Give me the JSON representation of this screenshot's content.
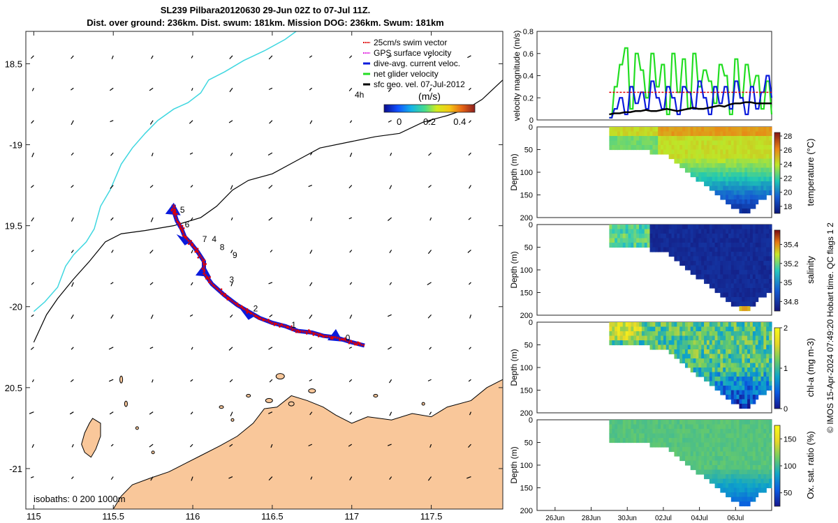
{
  "header": {
    "title_line1": "SL239 Pilbara20120630 29-Jun 02Z to 07-Jul 11Z.",
    "title_line2": "Dist. over ground: 236km. Dist. swum: 181km. Mission DOG: 236km. Swum: 181km"
  },
  "copyright": "© IMOS 15-Apr-2024 07:49:20 Hobart time. QC flags 1  2",
  "colors": {
    "land": "#f9c79a",
    "coast_line": "#000000",
    "isobath_0": "#000000",
    "isobath_200": "#3fd7e0",
    "swim_vector": "#e00000",
    "gps_velocity": "#e020e0",
    "current": "#0a1adc",
    "net_glider": "#22dd22",
    "geo_vel": "#000000"
  },
  "chart_data": [
    {
      "type": "map",
      "title": "SL239 Pilbara20120630 29-Jun 02Z to 07-Jul 11Z.",
      "xlim": [
        114.95,
        117.95
      ],
      "ylim": [
        -21.25,
        -18.3
      ],
      "x_ticks": [
        115,
        115.5,
        116,
        116.5,
        117,
        117.5
      ],
      "x_tick_labels": [
        "115",
        "115.5",
        "116",
        "116.5",
        "117",
        "117.5"
      ],
      "y_ticks": [
        -18.5,
        -19,
        -19.5,
        -20,
        -20.5,
        -21
      ],
      "y_tick_labels": [
        "18.5",
        "-19",
        "19.5",
        "-20",
        "20.5",
        "-21"
      ],
      "legend": {
        "placement": "top-right",
        "entries": [
          {
            "label": "25cm/s swim vector",
            "color": "#e00000",
            "style": "dotted"
          },
          {
            "label": "GPS surface velocity",
            "color": "#e020e0",
            "style": "dotted"
          },
          {
            "label": "dive-avg. current veloc.",
            "color": "#0a1adc",
            "style": "solid"
          },
          {
            "label": "net glider velocity",
            "color": "#22dd22",
            "style": "solid"
          },
          {
            "label": "sfc geo. vel. 07-Jul-2012",
            "color": "#000000",
            "style": "solid"
          }
        ],
        "note": "4h"
      },
      "colorbar": {
        "label": "(m/s)",
        "range": [
          -0.1,
          0.5
        ],
        "ticks": [
          0,
          0.2,
          0.4
        ],
        "tick_labels": [
          "0",
          "0.2",
          "0.4"
        ]
      },
      "isobath_label": "isobaths: 0   200  1000m",
      "track": [
        [
          117.08,
          -20.24
        ],
        [
          117.0,
          -20.22
        ],
        [
          116.9,
          -20.19
        ],
        [
          116.82,
          -20.18
        ],
        [
          116.75,
          -20.16
        ],
        [
          116.66,
          -20.15
        ],
        [
          116.58,
          -20.12
        ],
        [
          116.5,
          -20.1
        ],
        [
          116.42,
          -20.07
        ],
        [
          116.35,
          -20.03
        ],
        [
          116.28,
          -19.99
        ],
        [
          116.2,
          -19.93
        ],
        [
          116.12,
          -19.86
        ],
        [
          116.07,
          -19.79
        ],
        [
          116.07,
          -19.72
        ],
        [
          116.03,
          -19.66
        ],
        [
          115.99,
          -19.61
        ],
        [
          115.95,
          -19.57
        ],
        [
          115.93,
          -19.52
        ],
        [
          115.9,
          -19.47
        ],
        [
          115.88,
          -19.41
        ],
        [
          115.88,
          -19.37
        ]
      ],
      "track_labels": [
        {
          "text": "0",
          "lon": 116.96,
          "lat": -20.21
        },
        {
          "text": "1",
          "lon": 116.62,
          "lat": -20.13
        },
        {
          "text": "2",
          "lon": 116.38,
          "lat": -20.03
        },
        {
          "text": "3",
          "lon": 116.23,
          "lat": -19.85
        },
        {
          "text": "4",
          "lon": 116.12,
          "lat": -19.6
        },
        {
          "text": "5",
          "lon": 115.92,
          "lat": -19.42
        },
        {
          "text": "6",
          "lon": 115.95,
          "lat": -19.51
        },
        {
          "text": "7",
          "lon": 116.06,
          "lat": -19.6
        },
        {
          "text": "8",
          "lon": 116.17,
          "lat": -19.65
        },
        {
          "text": "9",
          "lon": 116.25,
          "lat": -19.7
        }
      ]
    },
    {
      "type": "line",
      "ylabel": "velocity magnitude (m/s)",
      "ylim": [
        0,
        0.8
      ],
      "y_ticks": [
        0,
        0.2,
        0.4,
        0.6,
        0.8
      ],
      "xlim": [
        "2012-06-25",
        "2012-07-08"
      ],
      "series": [
        {
          "color": "#22dd22",
          "values": [
            0.02,
            0.3,
            0.5,
            0.65,
            0.1,
            0.6,
            0.45,
            0.2,
            0.6,
            0.3,
            0.5,
            0.05,
            0.6,
            0.25,
            0.55,
            0.1,
            0.6,
            0.3,
            0.45,
            0.35,
            0.15,
            0.5,
            0.4,
            0.05,
            0.55,
            0.2,
            0.5,
            0.3,
            0.4,
            0.1,
            0.35,
            0.05
          ]
        },
        {
          "color": "#0a1adc",
          "values": [
            0.02,
            0.1,
            0.2,
            0.05,
            0.3,
            0.15,
            0.25,
            0.1,
            0.35,
            0.2,
            0.1,
            0.3,
            0.2,
            0.05,
            0.3,
            0.25,
            0.1,
            0.35,
            0.2,
            0.05,
            0.3,
            0.15,
            0.3,
            0.1,
            0.35,
            0.2,
            0.05,
            0.3,
            0.1,
            0.25,
            0.4,
            0.2
          ]
        },
        {
          "color": "#e00000",
          "values": [
            0.25,
            0.25,
            0.25,
            0.25,
            0.25,
            0.25,
            0.25,
            0.25,
            0.25,
            0.25,
            0.25,
            0.25,
            0.25,
            0.25,
            0.25,
            0.25,
            0.25,
            0.25,
            0.25,
            0.25,
            0.25,
            0.25,
            0.25,
            0.25,
            0.25,
            0.25,
            0.25,
            0.25,
            0.25,
            0.25,
            0.25,
            0.25
          ]
        },
        {
          "color": "#000000",
          "values": [
            0.05,
            0.06,
            0.06,
            0.07,
            0.07,
            0.08,
            0.08,
            0.09,
            0.08,
            0.08,
            0.09,
            0.1,
            0.09,
            0.08,
            0.09,
            0.1,
            0.11,
            0.1,
            0.1,
            0.11,
            0.12,
            0.13,
            0.12,
            0.14,
            0.15,
            0.15,
            0.16,
            0.16,
            0.15,
            0.15,
            0.15,
            0.15
          ]
        }
      ],
      "x_start": "2012-06-29",
      "x_end": "2012-07-08"
    },
    {
      "type": "heatmap",
      "ylabel": "Depth (m)",
      "clabel": "temperature (°C)",
      "clim": [
        17,
        28.5
      ],
      "cticks": [
        18,
        20,
        22,
        24,
        26,
        28
      ],
      "ylim": [
        0,
        200
      ],
      "y_ticks": [
        0,
        50,
        100,
        150,
        200
      ]
    },
    {
      "type": "heatmap",
      "ylabel": "Depth (m)",
      "clabel": "salinity",
      "clim": [
        34.7,
        35.55
      ],
      "cticks": [
        34.8,
        35,
        35.2,
        35.4
      ],
      "ylim": [
        0,
        200
      ],
      "y_ticks": [
        0,
        50,
        100,
        150,
        200
      ]
    },
    {
      "type": "heatmap",
      "ylabel": "Depth (m)",
      "clabel": "chl-a (mg m-3)",
      "clim": [
        0,
        2
      ],
      "cticks": [
        0,
        1,
        2
      ],
      "ylim": [
        0,
        200
      ],
      "y_ticks": [
        0,
        50,
        100,
        150,
        200
      ]
    },
    {
      "type": "heatmap",
      "ylabel": "Depth (m)",
      "clabel": "Ox. sat. ratio (%)",
      "clim": [
        25,
        175
      ],
      "cticks": [
        50,
        100,
        150
      ],
      "ylim": [
        0,
        200
      ],
      "y_ticks": [
        0,
        50,
        100,
        150,
        200
      ],
      "x_ticks": [
        "2012-06-26",
        "2012-06-28",
        "2012-06-30",
        "2012-07-02",
        "2012-07-04",
        "2012-07-06"
      ],
      "x_tick_labels": [
        "26Jun",
        "28Jun",
        "30Jun",
        "02Jul",
        "04Jul",
        "06Jul"
      ]
    }
  ]
}
